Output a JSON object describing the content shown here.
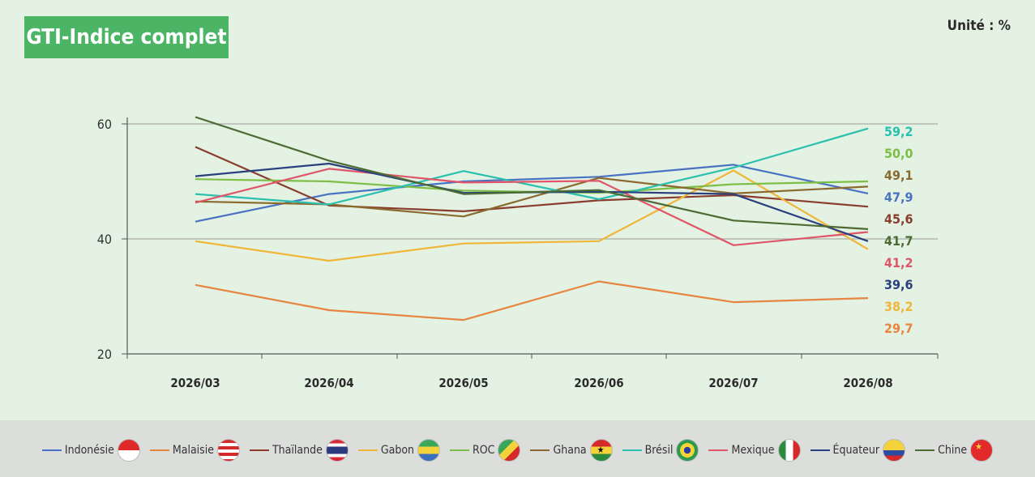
{
  "title": "GTI-Indice complet",
  "unit_label": "Unité : %",
  "chart_data": {
    "type": "line",
    "categories": [
      "2026/03",
      "2026/04",
      "2026/05",
      "2026/06",
      "2026/07",
      "2026/08"
    ],
    "ylim": [
      20,
      60
    ],
    "yticks": [
      20,
      40,
      60
    ],
    "grid": true,
    "legend_position": "bottom",
    "series": [
      {
        "name": "Indonésie",
        "color": "#4a72c2",
        "values": [
          43.0,
          47.8,
          50.0,
          50.8,
          52.9,
          47.9
        ],
        "end_label": "47,9",
        "flag": "indonesia-flag-icon"
      },
      {
        "name": "Malaisie",
        "color": "#e8853f",
        "values": [
          32.0,
          27.6,
          25.9,
          32.6,
          29.0,
          29.7
        ],
        "end_label": "29,7",
        "flag": "malaysia-flag-icon"
      },
      {
        "name": "Thaïlande",
        "color": "#8b3d2d",
        "values": [
          56.0,
          45.8,
          44.8,
          46.7,
          47.6,
          45.6
        ],
        "end_label": "45,6",
        "flag": "thailand-flag-icon"
      },
      {
        "name": "Gabon",
        "color": "#f0b63a",
        "values": [
          39.6,
          36.2,
          39.2,
          39.6,
          51.9,
          38.2
        ],
        "end_label": "38,2",
        "flag": "gabon-flag-icon"
      },
      {
        "name": "ROC",
        "color": "#7dbf46",
        "values": [
          50.4,
          50.0,
          48.4,
          48.0,
          49.5,
          50.0
        ],
        "end_label": "50,0",
        "flag": "congo-flag-icon"
      },
      {
        "name": "Ghana",
        "color": "#8a6a2e",
        "values": [
          46.5,
          46.0,
          43.9,
          50.6,
          47.9,
          49.1
        ],
        "end_label": "49,1",
        "flag": "ghana-flag-icon"
      },
      {
        "name": "Brésil",
        "color": "#2bbfae",
        "values": [
          47.8,
          46.0,
          51.8,
          46.9,
          52.4,
          59.2
        ],
        "end_label": "59,2",
        "flag": "brazil-flag-icon"
      },
      {
        "name": "Mexique",
        "color": "#e0556a",
        "values": [
          46.3,
          52.2,
          49.8,
          50.1,
          38.9,
          41.2
        ],
        "end_label": "41,2",
        "flag": "mexico-flag-icon"
      },
      {
        "name": "Équateur",
        "color": "#2a3f7d",
        "values": [
          50.9,
          53.1,
          48.0,
          48.2,
          47.8,
          39.6
        ],
        "end_label": "39,6",
        "flag": "ecuador-flag-icon"
      },
      {
        "name": "Chine",
        "color": "#4b6b33",
        "values": [
          61.2,
          53.6,
          47.8,
          48.5,
          43.2,
          41.7
        ],
        "end_label": "41,7",
        "flag": "china-flag-icon"
      }
    ]
  }
}
